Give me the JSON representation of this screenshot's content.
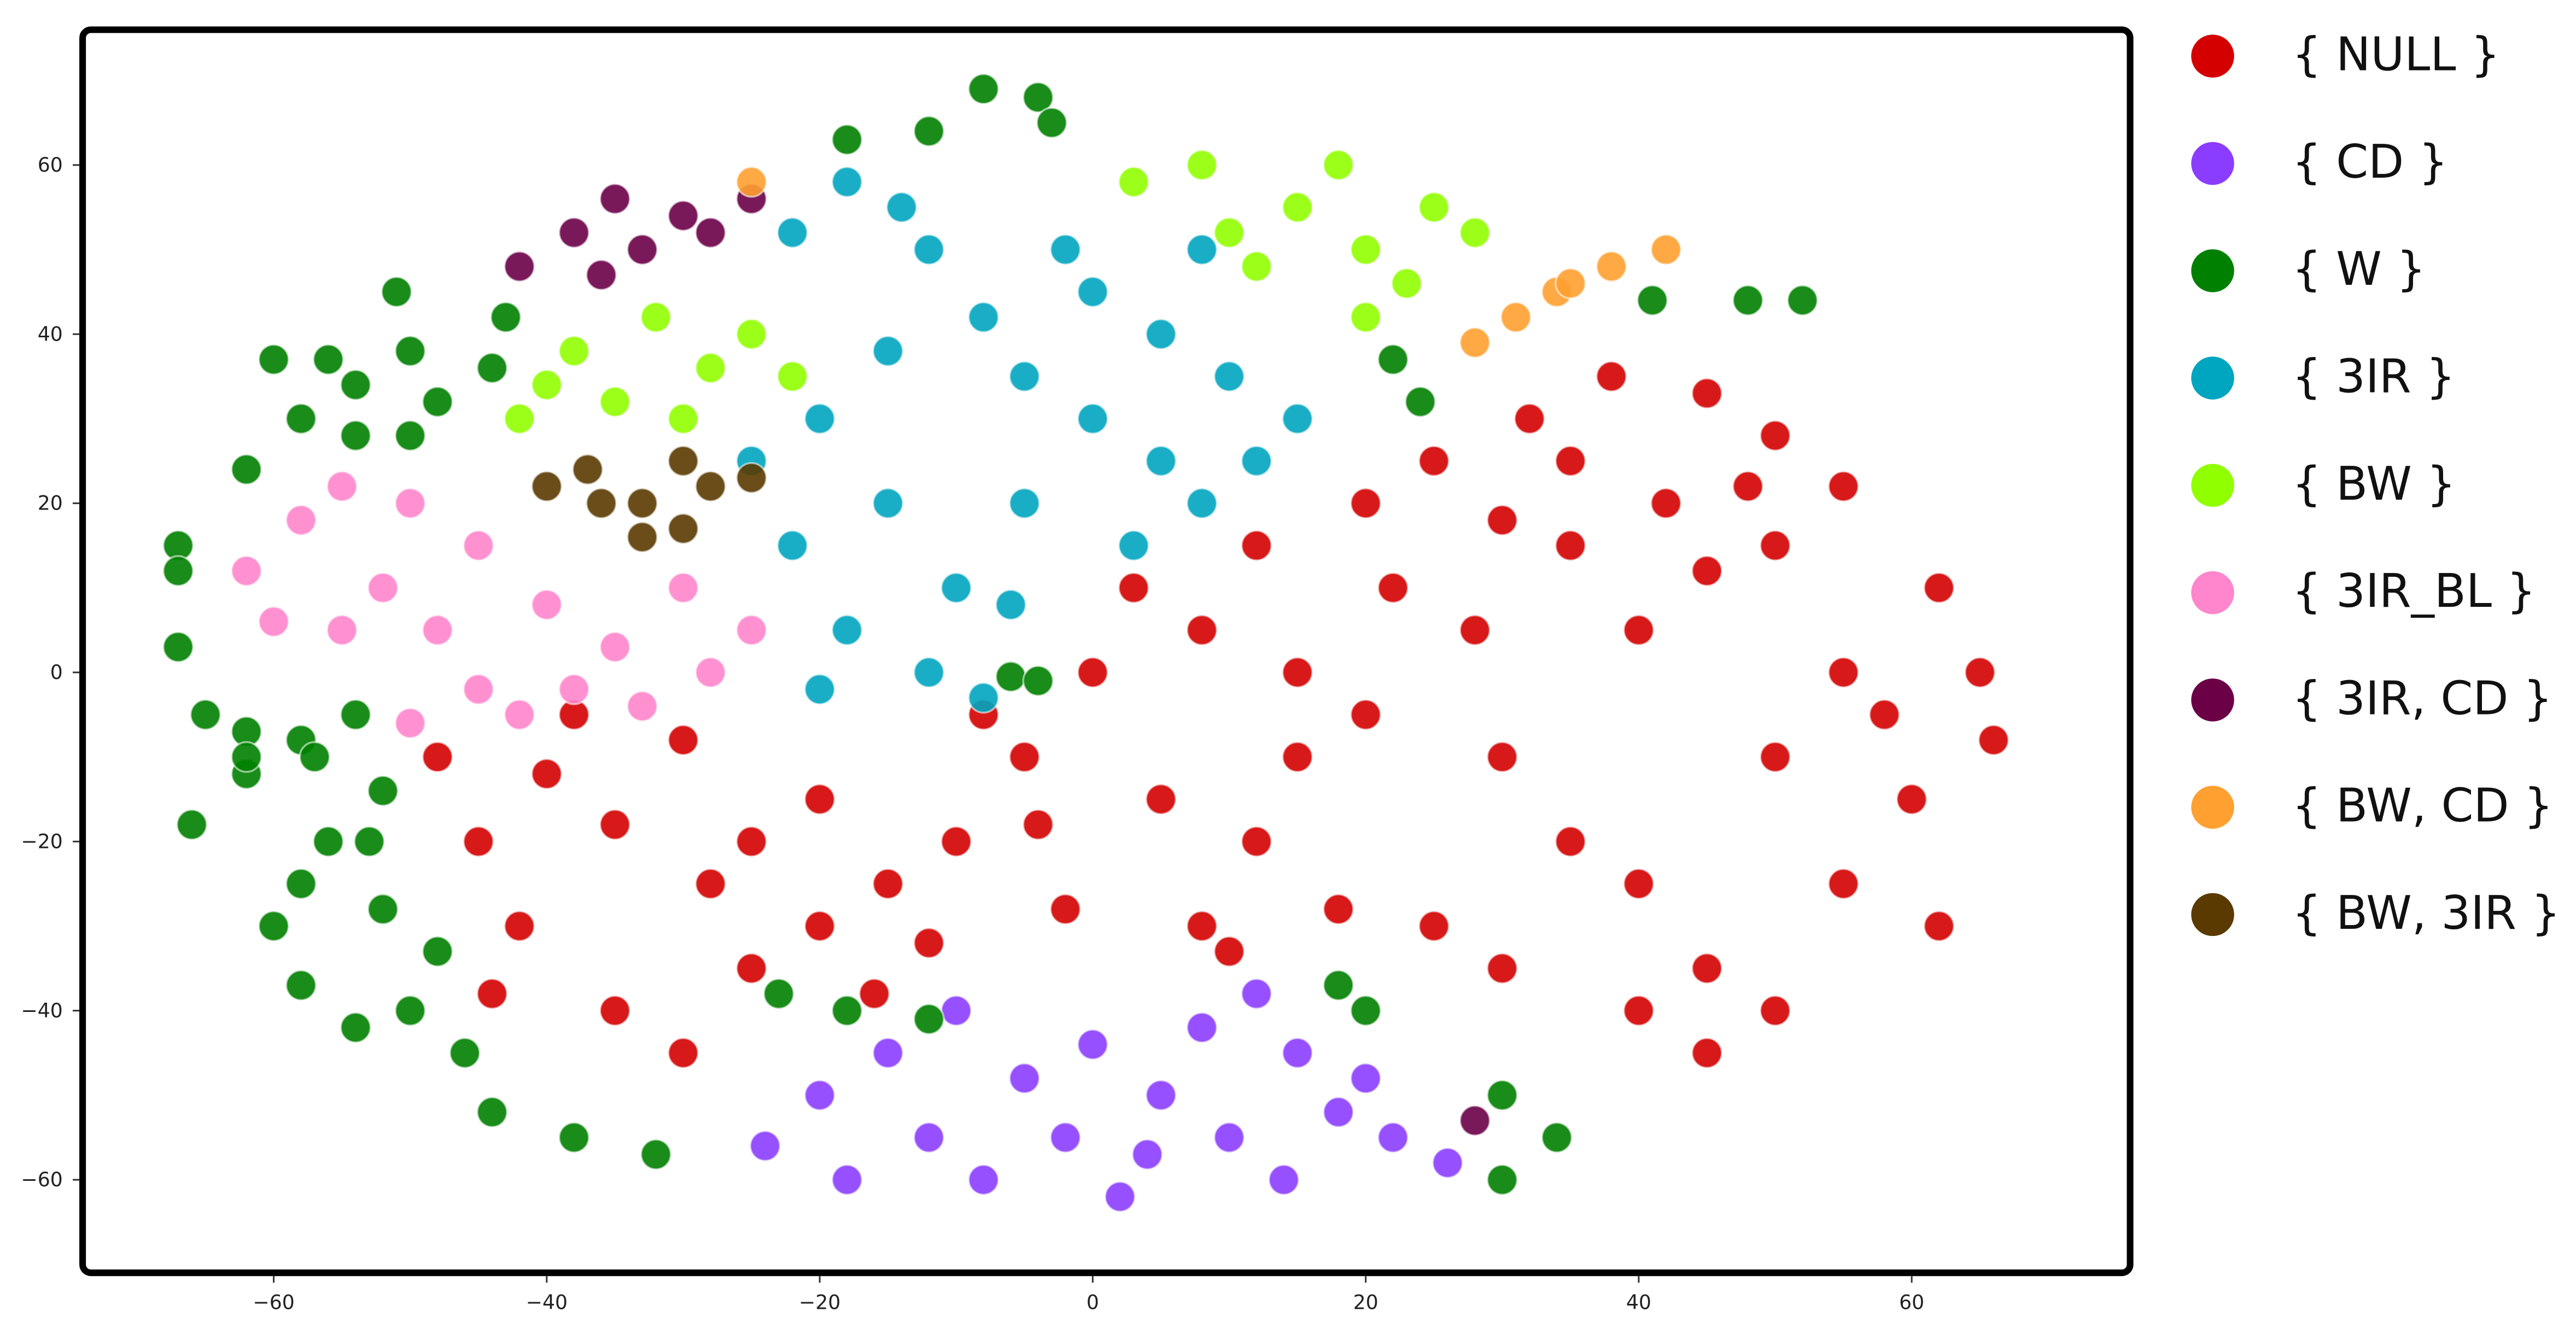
{
  "chart_data": {
    "type": "scatter",
    "xlim": [
      -74,
      76
    ],
    "ylim": [
      -71,
      76
    ],
    "xticks": [
      {
        "value": -60,
        "label": "−60"
      },
      {
        "value": -40,
        "label": "−40"
      },
      {
        "value": -20,
        "label": "−20"
      },
      0,
      20,
      40,
      60
    ],
    "yticks": [
      {
        "value": -60,
        "label": "−60"
      },
      {
        "value": -40,
        "label": "−40"
      },
      {
        "value": -20,
        "label": "−20"
      },
      0,
      20,
      40,
      60
    ],
    "series": [
      {
        "name": "{ NULL }",
        "color": "#d40000",
        "x": [
          -48,
          -45,
          -42,
          -40,
          -35,
          -30,
          -28,
          -25,
          -35,
          -30,
          -20,
          -15,
          -10,
          -12,
          -5,
          -2,
          -20,
          -38,
          -8,
          0,
          5,
          8,
          12,
          15,
          18,
          3,
          8,
          12,
          15,
          20,
          22,
          20,
          25,
          30,
          28,
          35,
          40,
          45,
          50,
          30,
          35,
          40,
          45,
          50,
          40,
          30,
          55,
          60,
          65,
          62,
          55,
          50,
          58,
          32,
          38,
          45,
          50,
          55,
          42,
          48,
          35,
          -44,
          -25,
          -16,
          -4,
          10,
          25,
          45,
          62,
          66
        ],
        "y": [
          -10,
          -20,
          -30,
          -12,
          -18,
          -8,
          -25,
          -35,
          -40,
          -45,
          -15,
          -25,
          -20,
          -32,
          -10,
          -28,
          -30,
          -5,
          -5,
          0,
          -15,
          -30,
          -20,
          -10,
          -28,
          10,
          5,
          15,
          0,
          -5,
          10,
          20,
          25,
          18,
          5,
          15,
          5,
          12,
          15,
          -10,
          -20,
          -25,
          -35,
          -40,
          -40,
          -35,
          -25,
          -15,
          0,
          10,
          0,
          -10,
          -5,
          30,
          35,
          33,
          28,
          22,
          20,
          22,
          25,
          -38,
          -20,
          -38,
          -18,
          -33,
          -30,
          -45,
          -30,
          -8
        ]
      },
      {
        "name": "{ CD }",
        "color": "#8b3dff",
        "x": [
          -24,
          -20,
          -15,
          -12,
          -8,
          -5,
          -2,
          2,
          5,
          8,
          10,
          12,
          15,
          18,
          22,
          20,
          -18,
          0,
          26,
          -10,
          4,
          14
        ],
        "y": [
          -56,
          -50,
          -45,
          -55,
          -60,
          -48,
          -55,
          -62,
          -50,
          -42,
          -55,
          -38,
          -45,
          -52,
          -55,
          -48,
          -60,
          -44,
          -58,
          -40,
          -57,
          -60
        ]
      },
      {
        "name": "{ W }",
        "color": "#008000",
        "x": [
          -18,
          -12,
          -8,
          -4,
          -3,
          -60,
          -56,
          -54,
          -58,
          -54,
          -50,
          -48,
          -51,
          -50,
          -44,
          -43,
          -62,
          -67,
          -67,
          -67,
          -65,
          -62,
          -58,
          -54,
          -62,
          -66,
          -62,
          -57,
          -52,
          -56,
          -53,
          -58,
          -60,
          -58,
          -54,
          -50,
          -48,
          -52,
          -46,
          -44,
          -38,
          -32,
          -23,
          -18,
          -12,
          -6,
          -4,
          18,
          20,
          30,
          34,
          30,
          41,
          48,
          52,
          22,
          24
        ],
        "y": [
          63,
          64,
          69,
          68,
          65,
          37,
          37,
          34,
          30,
          28,
          28,
          32,
          45,
          38,
          36,
          42,
          24,
          15,
          12,
          3,
          -5,
          -7,
          -8,
          -5,
          -12,
          -18,
          -10,
          -10,
          -14,
          -20,
          -20,
          -25,
          -30,
          -37,
          -42,
          -40,
          -33,
          -28,
          -45,
          -52,
          -55,
          -57,
          -38,
          -40,
          -41,
          -0.5,
          -1,
          -37,
          -40,
          -50,
          -55,
          -60,
          44,
          44,
          44,
          37,
          32
        ]
      },
      {
        "name": "{ 3IR }",
        "color": "#00a5c0",
        "x": [
          -22,
          -18,
          -12,
          -8,
          -15,
          -20,
          -25,
          -22,
          -18,
          -12,
          -8,
          -10,
          -5,
          0,
          5,
          8,
          -2,
          -5,
          10,
          12,
          15,
          3,
          5,
          -15,
          -20,
          -14,
          0,
          -6,
          8
        ],
        "y": [
          52,
          58,
          50,
          42,
          38,
          30,
          25,
          15,
          5,
          0,
          -3,
          10,
          20,
          30,
          40,
          50,
          50,
          35,
          35,
          25,
          30,
          15,
          25,
          20,
          -2,
          55,
          45,
          8,
          20
        ]
      },
      {
        "name": "{ BW }",
        "color": "#90ff00",
        "x": [
          -42,
          -38,
          -35,
          -32,
          -28,
          -25,
          -22,
          -40,
          3,
          8,
          10,
          15,
          20,
          25,
          28,
          20,
          12,
          18,
          23,
          -30
        ],
        "y": [
          30,
          38,
          32,
          42,
          36,
          40,
          35,
          34,
          58,
          60,
          52,
          55,
          50,
          55,
          52,
          42,
          48,
          60,
          46,
          30
        ]
      },
      {
        "name": "{ 3IR_BL }",
        "color": "#ff85cc",
        "x": [
          -62,
          -58,
          -55,
          -50,
          -52,
          -48,
          -45,
          -40,
          -35,
          -30,
          -28,
          -38,
          -42,
          -25,
          -55,
          -45,
          -33,
          -60,
          -50
        ],
        "y": [
          12,
          18,
          22,
          20,
          10,
          5,
          15,
          8,
          3,
          10,
          0,
          -2,
          -5,
          5,
          5,
          -2,
          -4,
          6,
          -6
        ]
      },
      {
        "name": "{ 3IR, CD }",
        "color": "#6b0047",
        "x": [
          -42,
          -38,
          -35,
          -33,
          -30,
          -28,
          -25,
          -36,
          28
        ],
        "y": [
          48,
          52,
          56,
          50,
          54,
          52,
          56,
          47,
          -53
        ]
      },
      {
        "name": "{ BW, CD }",
        "color": "#ffa030",
        "x": [
          28,
          31,
          34,
          38,
          42,
          -25,
          35
        ],
        "y": [
          39,
          42,
          45,
          48,
          50,
          58,
          46
        ]
      },
      {
        "name": "{ BW, 3IR }",
        "color": "#5a3a00",
        "x": [
          -40,
          -37,
          -33,
          -30,
          -28,
          -25,
          -33,
          -30,
          -36
        ],
        "y": [
          22,
          24,
          20,
          25,
          22,
          23,
          16,
          17,
          20
        ]
      }
    ]
  }
}
